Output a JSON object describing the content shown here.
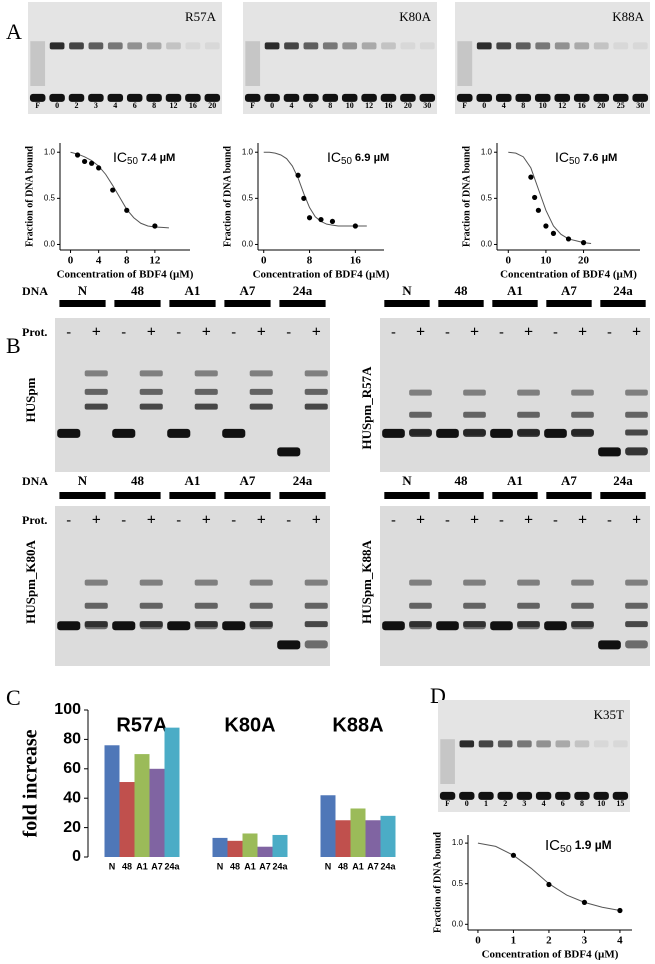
{
  "panel_labels": [
    "A",
    "B",
    "C",
    "D"
  ],
  "gels": [
    {
      "label": "R57A",
      "lanes": [
        "F",
        "0",
        "2",
        "3",
        "4",
        "6",
        "8",
        "12",
        "16",
        "20"
      ]
    },
    {
      "label": "K80A",
      "lanes": [
        "F",
        "0",
        "4",
        "6",
        "8",
        "10",
        "12",
        "16",
        "20",
        "30"
      ]
    },
    {
      "label": "K88A",
      "lanes": [
        "F",
        "0",
        "4",
        "8",
        "10",
        "12",
        "16",
        "20",
        "25",
        "30"
      ]
    },
    {
      "label": "K35T",
      "lanes": [
        "F",
        "0",
        "1",
        "2",
        "3",
        "4",
        "6",
        "8",
        "10",
        "15"
      ]
    }
  ],
  "panel_b": {
    "dna_label": "DNA",
    "prot_label": "Prot.",
    "dna": [
      "N",
      "48",
      "A1",
      "A7",
      "24a"
    ],
    "minus": "-",
    "plus": "+",
    "gels": [
      "HUSpm",
      "HUSpm_R57A",
      "HUSpm_K80A",
      "HUSpm_K88A"
    ]
  },
  "chart_data": [
    {
      "type": "scatter",
      "ic50_prefix": "IC",
      "ic50_sub": "50",
      "ic50_value": "7.4 µM",
      "ylabel": "Fraction of DNA bound",
      "xlabel": "Concentration  of BDF4 (µM)",
      "color": "#000000",
      "x": [
        1,
        2,
        3,
        4,
        6,
        8,
        12
      ],
      "values": [
        0.97,
        0.9,
        0.88,
        0.83,
        0.59,
        0.37,
        0.2
      ],
      "fit": {
        "x": [
          0,
          1,
          2,
          3,
          4,
          5,
          6,
          7,
          8,
          9,
          10,
          11,
          12,
          13,
          14
        ],
        "values": [
          1.0,
          0.98,
          0.95,
          0.91,
          0.85,
          0.76,
          0.64,
          0.51,
          0.38,
          0.29,
          0.23,
          0.2,
          0.19,
          0.185,
          0.18
        ]
      },
      "xlim": [
        -1.5,
        17
      ],
      "ylim": [
        -0.06,
        1.1
      ],
      "xticks": [
        0,
        4,
        8,
        12
      ],
      "yticks": [
        {
          "value": 0,
          "label": "0.0"
        },
        {
          "value": 0.5,
          "label": "0.5"
        },
        {
          "value": 1,
          "label": "1.0"
        }
      ]
    },
    {
      "type": "scatter",
      "ic50_prefix": "IC",
      "ic50_sub": "50",
      "ic50_value": "6.9 µM",
      "ylabel": "Fraction of DNA bound",
      "xlabel": "Concentration  of BDF4 (µM)",
      "color": "#000000",
      "x": [
        6,
        7,
        8,
        10,
        12,
        16
      ],
      "values": [
        0.75,
        0.5,
        0.29,
        0.27,
        0.25,
        0.2
      ],
      "fit": {
        "x": [
          0,
          1,
          2,
          3,
          4,
          5,
          6,
          7,
          8,
          9,
          10,
          11,
          12,
          13,
          14,
          15,
          16,
          17,
          18
        ],
        "values": [
          1.0,
          1.0,
          0.99,
          0.97,
          0.93,
          0.85,
          0.72,
          0.55,
          0.4,
          0.3,
          0.25,
          0.22,
          0.21,
          0.2,
          0.2,
          0.2,
          0.2,
          0.2,
          0.2
        ]
      },
      "xlim": [
        -1,
        21
      ],
      "ylim": [
        -0.06,
        1.1
      ],
      "xticks": [
        0,
        8,
        16
      ],
      "yticks": [
        {
          "value": 0,
          "label": "0.0"
        },
        {
          "value": 0.5,
          "label": "0.5"
        },
        {
          "value": 1,
          "label": "1.0"
        }
      ]
    },
    {
      "type": "scatter",
      "ic50_prefix": "IC",
      "ic50_sub": "50",
      "ic50_value": "7.6 µM",
      "ylabel": "Fraction of DNA bound",
      "xlabel": "Concentration  of BDF4 (µM)",
      "color": "#000000",
      "x": [
        6,
        7,
        8,
        10,
        12,
        16,
        20
      ],
      "values": [
        0.73,
        0.51,
        0.37,
        0.2,
        0.12,
        0.06,
        0.02
      ],
      "fit": {
        "x": [
          0,
          2,
          4,
          6,
          8,
          10,
          12,
          14,
          16,
          18,
          20,
          22
        ],
        "values": [
          1.0,
          0.99,
          0.95,
          0.83,
          0.6,
          0.37,
          0.2,
          0.11,
          0.06,
          0.04,
          0.02,
          0.01
        ]
      },
      "xlim": [
        -3,
        35
      ],
      "ylim": [
        -0.06,
        1.1
      ],
      "xticks": [
        0,
        10,
        20
      ],
      "yticks": [
        {
          "value": 0,
          "label": "0.0"
        },
        {
          "value": 0.5,
          "label": "0.5"
        },
        {
          "value": 1,
          "label": "1.0"
        }
      ]
    },
    {
      "type": "bar",
      "ylabel": "fold increase",
      "categories": [
        "R57A",
        "K80A",
        "K88A"
      ],
      "series": [
        {
          "name": "N",
          "color": "#4f77b8",
          "values": [
            76,
            13,
            42
          ]
        },
        {
          "name": "48",
          "color": "#c0504d",
          "values": [
            51,
            11,
            25
          ]
        },
        {
          "name": "A1",
          "color": "#9bbb59",
          "values": [
            70,
            16,
            33
          ]
        },
        {
          "name": "A7",
          "color": "#8064a2",
          "values": [
            60,
            7,
            25
          ]
        },
        {
          "name": "24a",
          "color": "#4bacc6",
          "values": [
            88,
            15,
            28
          ]
        }
      ],
      "ylim": [
        0,
        100
      ],
      "yticks": [
        0,
        20,
        40,
        60,
        80,
        100
      ]
    },
    {
      "type": "scatter",
      "ic50_prefix": "IC",
      "ic50_sub": "50",
      "ic50_value": "1.9 µM",
      "ylabel": "Fraction of DNA bound",
      "xlabel": "Concentration  of BDF4 (µM)",
      "color": "#000000",
      "x": [
        1,
        2,
        3,
        4
      ],
      "values": [
        0.85,
        0.49,
        0.27,
        0.17
      ],
      "fit": {
        "x": [
          0,
          0.5,
          1,
          1.5,
          2,
          2.5,
          3,
          3.5,
          4
        ],
        "values": [
          1.0,
          0.96,
          0.85,
          0.69,
          0.5,
          0.36,
          0.27,
          0.21,
          0.17
        ]
      },
      "xlim": [
        -0.28,
        4.34
      ],
      "ylim": [
        -0.07,
        1.1
      ],
      "xticks": [
        0,
        1,
        2,
        3,
        4
      ],
      "yticks": [
        {
          "value": 0,
          "label": "0.0"
        },
        {
          "value": 0.5,
          "label": "0.5"
        },
        {
          "value": 1,
          "label": "1.0"
        }
      ]
    }
  ]
}
